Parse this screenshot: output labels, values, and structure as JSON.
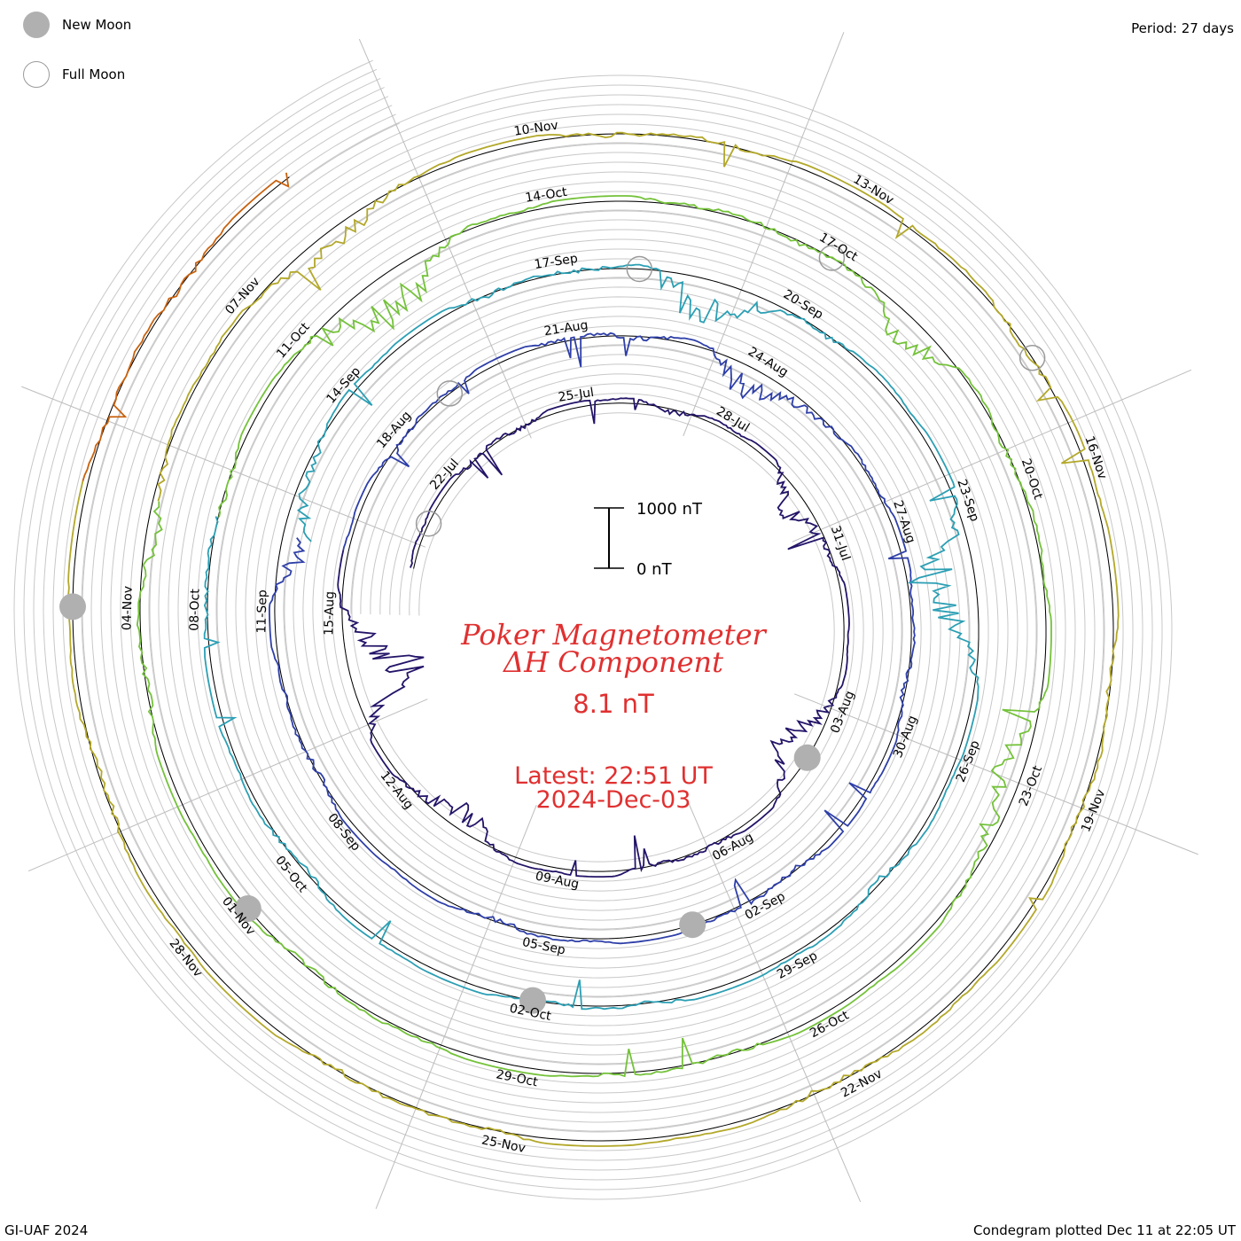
{
  "legend": {
    "new_moon_label": "New Moon",
    "full_moon_label": "Full Moon"
  },
  "period_label": "Period: 27 days",
  "credit": "GI-UAF 2024",
  "plotted": "Condegram plotted Dec 11 at 22:05 UT",
  "title_line1": "Poker Magnetometer",
  "title_line2": "ΔH Component",
  "current_value": "8.1 nT",
  "latest_line1": "Latest: 22:51 UT",
  "latest_line2": "2024-Dec-03",
  "scale_bar": {
    "top_label": "1000 nT",
    "bottom_label": "0 nT"
  },
  "colors": {
    "title": "#e03030",
    "grid": "#c8c8c8",
    "new_moon": "#b0b0b0",
    "full_moon_outline": "#9a9a9a",
    "rotations": [
      "#241468",
      "#2e3fa8",
      "#2c9fb4",
      "#74c23a",
      "#b3a82a",
      "#c8620f"
    ]
  },
  "chart_data": {
    "type": "spiral condegram",
    "period_days": 27,
    "scale_nT": [
      0,
      1000
    ],
    "date_labels": [
      "22-Jul",
      "25-Jul",
      "28-Jul",
      "31-Jul",
      "03-Aug",
      "06-Aug",
      "09-Aug",
      "12-Aug",
      "15-Aug",
      "18-Aug",
      "21-Aug",
      "24-Aug",
      "27-Aug",
      "30-Aug",
      "02-Sep",
      "05-Sep",
      "08-Sep",
      "11-Sep",
      "14-Sep",
      "17-Sep",
      "20-Sep",
      "23-Sep",
      "26-Sep",
      "29-Sep",
      "02-Oct",
      "05-Oct",
      "08-Oct",
      "11-Oct",
      "14-Oct",
      "17-Oct",
      "20-Oct",
      "23-Oct",
      "26-Oct",
      "29-Oct",
      "01-Nov",
      "04-Nov",
      "07-Nov",
      "10-Nov",
      "13-Nov",
      "16-Nov",
      "19-Nov",
      "22-Nov",
      "25-Nov",
      "28-Nov"
    ],
    "new_moons": [
      "04-Aug",
      "03-Sep",
      "02-Oct",
      "01-Nov",
      "01-Dec"
    ],
    "full_moons": [
      "21-Jul",
      "19-Aug",
      "18-Sep",
      "17-Oct",
      "15-Nov"
    ]
  }
}
